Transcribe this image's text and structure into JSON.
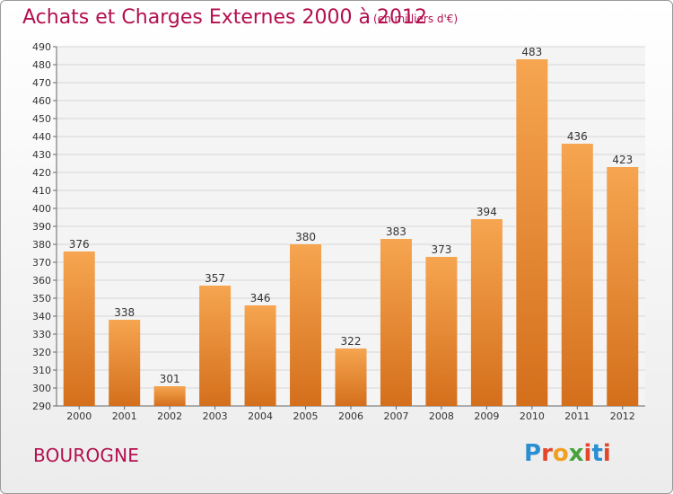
{
  "header": {
    "title": "Achats et Charges Externes 2000 à 2012",
    "subtitle": "(en milliers d'€)"
  },
  "footer": {
    "location": "BOUROGNE",
    "logo_text": "Proxiti"
  },
  "colors": {
    "accent": "#b30f4e",
    "bar_top": "#f6a550",
    "bar_bottom": "#d46f1c",
    "grid": "#d6d6d6",
    "logo_letters": [
      "#2a8fd0",
      "#e2472b",
      "#f0a020",
      "#46a33b",
      "#e2472b",
      "#2a8fd0",
      "#e2472b"
    ]
  },
  "chart_data": {
    "type": "bar",
    "title": "Achats et Charges Externes 2000 à 2012",
    "subtitle": "(en milliers d'€)",
    "xlabel": "",
    "ylabel": "",
    "categories": [
      "2000",
      "2001",
      "2002",
      "2003",
      "2004",
      "2005",
      "2006",
      "2007",
      "2008",
      "2009",
      "2010",
      "2011",
      "2012"
    ],
    "values": [
      376,
      338,
      301,
      357,
      346,
      380,
      322,
      383,
      373,
      394,
      483,
      436,
      423
    ],
    "ylim": [
      290,
      490
    ],
    "ytick_step": 10,
    "grid": true
  }
}
